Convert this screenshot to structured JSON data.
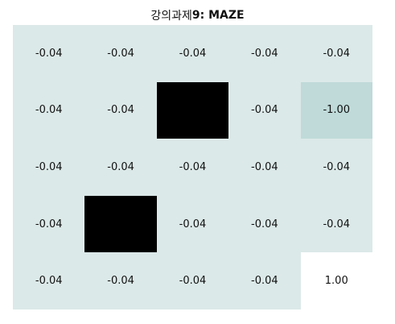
{
  "title": {
    "prefix": "강의과제",
    "rest": "9: MAZE"
  },
  "colors": {
    "floor": "#dbe9e8",
    "wall": "#000000",
    "trap": "#bfdad9",
    "goal": "#ffffff",
    "text": "#111111"
  },
  "grid": {
    "rows": [
      [
        {
          "type": "floor",
          "value": "-0.04"
        },
        {
          "type": "floor",
          "value": "-0.04"
        },
        {
          "type": "floor",
          "value": "-0.04"
        },
        {
          "type": "floor",
          "value": "-0.04"
        },
        {
          "type": "floor",
          "value": "-0.04"
        }
      ],
      [
        {
          "type": "floor",
          "value": "-0.04"
        },
        {
          "type": "floor",
          "value": "-0.04"
        },
        {
          "type": "wall",
          "value": ""
        },
        {
          "type": "floor",
          "value": "-0.04"
        },
        {
          "type": "trap",
          "value": "-1.00"
        }
      ],
      [
        {
          "type": "floor",
          "value": "-0.04"
        },
        {
          "type": "floor",
          "value": "-0.04"
        },
        {
          "type": "floor",
          "value": "-0.04"
        },
        {
          "type": "floor",
          "value": "-0.04"
        },
        {
          "type": "floor",
          "value": "-0.04"
        }
      ],
      [
        {
          "type": "floor",
          "value": "-0.04"
        },
        {
          "type": "wall",
          "value": ""
        },
        {
          "type": "floor",
          "value": "-0.04"
        },
        {
          "type": "floor",
          "value": "-0.04"
        },
        {
          "type": "floor",
          "value": "-0.04"
        }
      ],
      [
        {
          "type": "floor",
          "value": "-0.04"
        },
        {
          "type": "floor",
          "value": "-0.04"
        },
        {
          "type": "floor",
          "value": "-0.04"
        },
        {
          "type": "floor",
          "value": "-0.04"
        },
        {
          "type": "goal",
          "value": "1.00"
        }
      ]
    ]
  }
}
